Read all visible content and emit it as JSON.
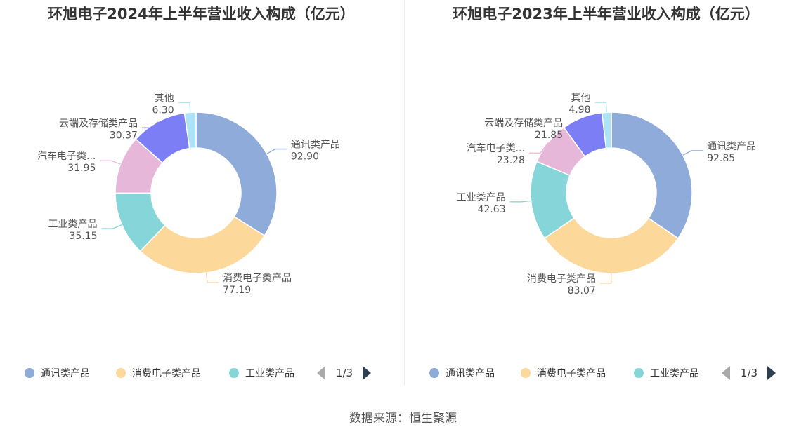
{
  "source": "数据来源：恒生聚源",
  "chart_data": [
    {
      "type": "pie",
      "title": "环旭电子2024年上半年营业收入构成（亿元）",
      "slices": [
        {
          "name": "通讯类产品",
          "label": "通讯类产品",
          "value": 92.9,
          "value_text": "92.90",
          "color": "#8eabd9"
        },
        {
          "name": "消费电子类产品",
          "label": "消费电子类产品",
          "value": 77.19,
          "value_text": "77.19",
          "color": "#fdd89b"
        },
        {
          "name": "工业类产品",
          "label": "工业类产品",
          "value": 35.15,
          "value_text": "35.15",
          "color": "#86d6d9"
        },
        {
          "name": "汽车电子类产品",
          "label": "汽车电子类...",
          "value": 31.95,
          "value_text": "31.95",
          "color": "#e7b7d9"
        },
        {
          "name": "云端及存储类产品",
          "label": "云端及存储类产品",
          "value": 30.37,
          "value_text": "30.37",
          "color": "#7b7ef4"
        },
        {
          "name": "其他",
          "label": "其他",
          "value": 6.3,
          "value_text": "6.30",
          "color": "#aee3f6"
        }
      ],
      "legend": {
        "items": [
          "通讯类产品",
          "消费电子类产品",
          "工业类产品"
        ],
        "page": "1/3",
        "placement": "bottom"
      }
    },
    {
      "type": "pie",
      "title": "环旭电子2023年上半年营业收入构成（亿元）",
      "slices": [
        {
          "name": "通讯类产品",
          "label": "通讯类产品",
          "value": 92.85,
          "value_text": "92.85",
          "color": "#8eabd9"
        },
        {
          "name": "消费电子类产品",
          "label": "消费电子类产品",
          "value": 83.07,
          "value_text": "83.07",
          "color": "#fdd89b"
        },
        {
          "name": "工业类产品",
          "label": "工业类产品",
          "value": 42.63,
          "value_text": "42.63",
          "color": "#86d6d9"
        },
        {
          "name": "汽车电子类产品",
          "label": "汽车电子类...",
          "value": 23.28,
          "value_text": "23.28",
          "color": "#e7b7d9"
        },
        {
          "name": "云端及存储类产品",
          "label": "云端及存储类产品",
          "value": 21.85,
          "value_text": "21.85",
          "color": "#7b7ef4"
        },
        {
          "name": "其他",
          "label": "其他",
          "value": 4.98,
          "value_text": "4.98",
          "color": "#aee3f6"
        }
      ],
      "legend": {
        "items": [
          "通讯类产品",
          "消费电子类产品",
          "工业类产品"
        ],
        "page": "1/3",
        "placement": "bottom"
      }
    }
  ]
}
